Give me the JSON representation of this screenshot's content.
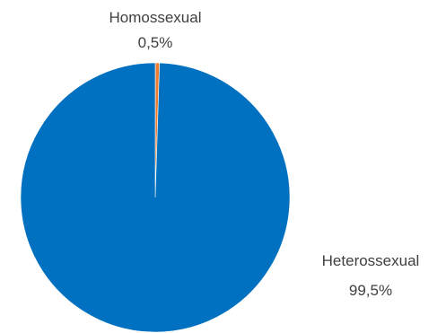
{
  "chart_data": {
    "type": "pie",
    "title": "",
    "categories": [
      "Homossexual",
      "Heterossexual"
    ],
    "values": [
      0.5,
      99.5
    ],
    "value_labels": [
      "0,5%",
      "99,5%"
    ],
    "colors": [
      "#ED7D31",
      "#0070C0"
    ],
    "legend": "none"
  }
}
